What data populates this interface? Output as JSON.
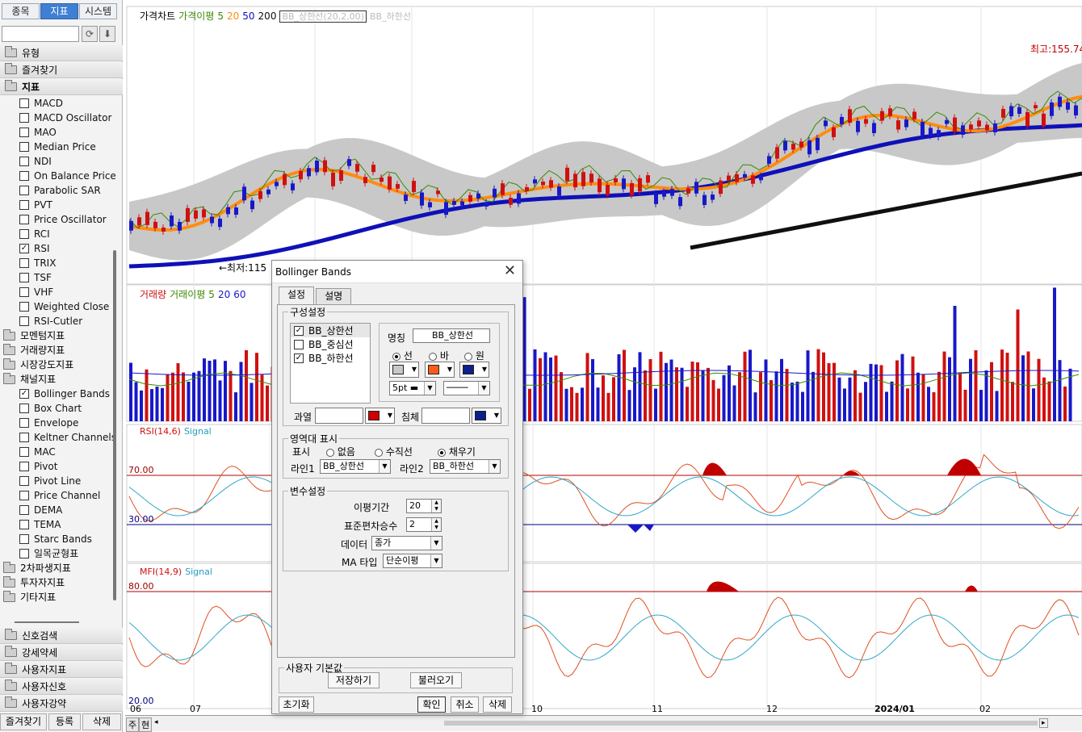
{
  "sidebar": {
    "tabs": [
      "종목",
      "지표",
      "시스템"
    ],
    "groups": [
      "유형",
      "즐겨찾기",
      "지표"
    ],
    "indicators1": [
      {
        "label": "MACD",
        "checked": false
      },
      {
        "label": "MACD Oscillator",
        "checked": false
      },
      {
        "label": "MAO",
        "checked": false
      },
      {
        "label": "Median Price",
        "checked": false
      },
      {
        "label": "NDI",
        "checked": false
      },
      {
        "label": "On Balance Price",
        "checked": false
      },
      {
        "label": "Parabolic SAR",
        "checked": false
      },
      {
        "label": "PVT",
        "checked": false
      },
      {
        "label": "Price Oscillator",
        "checked": false
      },
      {
        "label": "RCI",
        "checked": false
      },
      {
        "label": "RSI",
        "checked": true
      },
      {
        "label": "TRIX",
        "checked": false
      },
      {
        "label": "TSF",
        "checked": false
      },
      {
        "label": "VHF",
        "checked": false
      },
      {
        "label": "Weighted Close",
        "checked": false
      },
      {
        "label": "RSI-Cutler",
        "checked": false
      }
    ],
    "subgroups1": [
      "모멘텀지표",
      "거래량지표",
      "시장강도지표",
      "채널지표"
    ],
    "indicators2": [
      {
        "label": "Bollinger Bands",
        "checked": true
      },
      {
        "label": "Box Chart",
        "checked": false
      },
      {
        "label": "Envelope",
        "checked": false
      },
      {
        "label": "Keltner Channels",
        "checked": false
      },
      {
        "label": "MAC",
        "checked": false
      },
      {
        "label": "Pivot",
        "checked": false
      },
      {
        "label": "Pivot Line",
        "checked": false
      },
      {
        "label": "Price Channel",
        "checked": false
      },
      {
        "label": "DEMA",
        "checked": false
      },
      {
        "label": "TEMA",
        "checked": false
      },
      {
        "label": "Starc Bands",
        "checked": false
      },
      {
        "label": "일목균형표",
        "checked": false
      }
    ],
    "subgroups2": [
      "2차파생지표",
      "투자자지표",
      "기타지표"
    ],
    "bottom_groups": [
      "신호검색",
      "강세약세",
      "사용자지표",
      "사용자신호",
      "사용자강약"
    ],
    "bottom_buttons": [
      "즐겨찾기",
      "등록",
      "삭제"
    ]
  },
  "chart": {
    "price_legend": {
      "main": "가격차트",
      "ma_label": "가격이평",
      "ma5": "5",
      "ma20": "20",
      "ma50": "50",
      "ma200": "200",
      "bb_upper": "BB_상한선(20,2,00)",
      "bb_lower": "BB_하한선"
    },
    "high_label": "최고:155.74",
    "low_label": "←최저:115",
    "volume_legend": {
      "main": "거래량",
      "ma_label": "거래이평",
      "v5": "5",
      "v20": "20",
      "v60": "60"
    },
    "rsi_legend": {
      "main": "RSI(14,6)",
      "signal": "Signal"
    },
    "rsi_levels": [
      "70.00",
      "30.00"
    ],
    "mfi_legend": {
      "main": "MFI(14,9)",
      "signal": "Signal"
    },
    "mfi_levels": [
      "80.00",
      "20.00"
    ],
    "x_labels": [
      "06",
      "07",
      "10",
      "11",
      "12",
      "2024/01",
      "02"
    ],
    "status_labels": [
      "주",
      "현"
    ],
    "colors": {
      "up": "#d01010",
      "down": "#1818c8",
      "band": "#c8c8c8",
      "ma20": "#ff8c10",
      "ma50": "#1010b8",
      "ma200": "#101010",
      "ma5": "#3a8a00"
    }
  },
  "dialog": {
    "title": "Bollinger Bands",
    "tabs": [
      "설정",
      "설명"
    ],
    "composition": {
      "legend": "구성설정",
      "items": [
        {
          "label": "BB_상한선",
          "checked": true
        },
        {
          "label": "BB_중심선",
          "checked": false
        },
        {
          "label": "BB_하한선",
          "checked": true
        }
      ],
      "name_label": "명칭",
      "name_value": "BB_상한선",
      "shape_options": [
        "선",
        "바",
        "원"
      ],
      "width_value": "5pt",
      "overbought_label": "과열",
      "oversold_label": "침체"
    },
    "area": {
      "legend": "영역대 표시",
      "display_label": "표시",
      "options": [
        "없음",
        "수직선",
        "채우기"
      ],
      "line1_label": "라인1",
      "line1_value": "BB_상한선",
      "line2_label": "라인2",
      "line2_value": "BB_하한선"
    },
    "vars": {
      "legend": "변수설정",
      "period_label": "이평기간",
      "period_value": "20",
      "stddev_label": "표준편차승수",
      "stddev_value": "2",
      "data_label": "데이터",
      "data_value": "종가",
      "ma_type_label": "MA 타입",
      "ma_type_value": "단순이평"
    },
    "user_defaults": {
      "legend": "사용자 기본값",
      "save": "저장하기",
      "load": "불러오기"
    },
    "buttons": {
      "reset": "초기화",
      "ok": "확인",
      "cancel": "취소",
      "delete": "삭제"
    }
  }
}
